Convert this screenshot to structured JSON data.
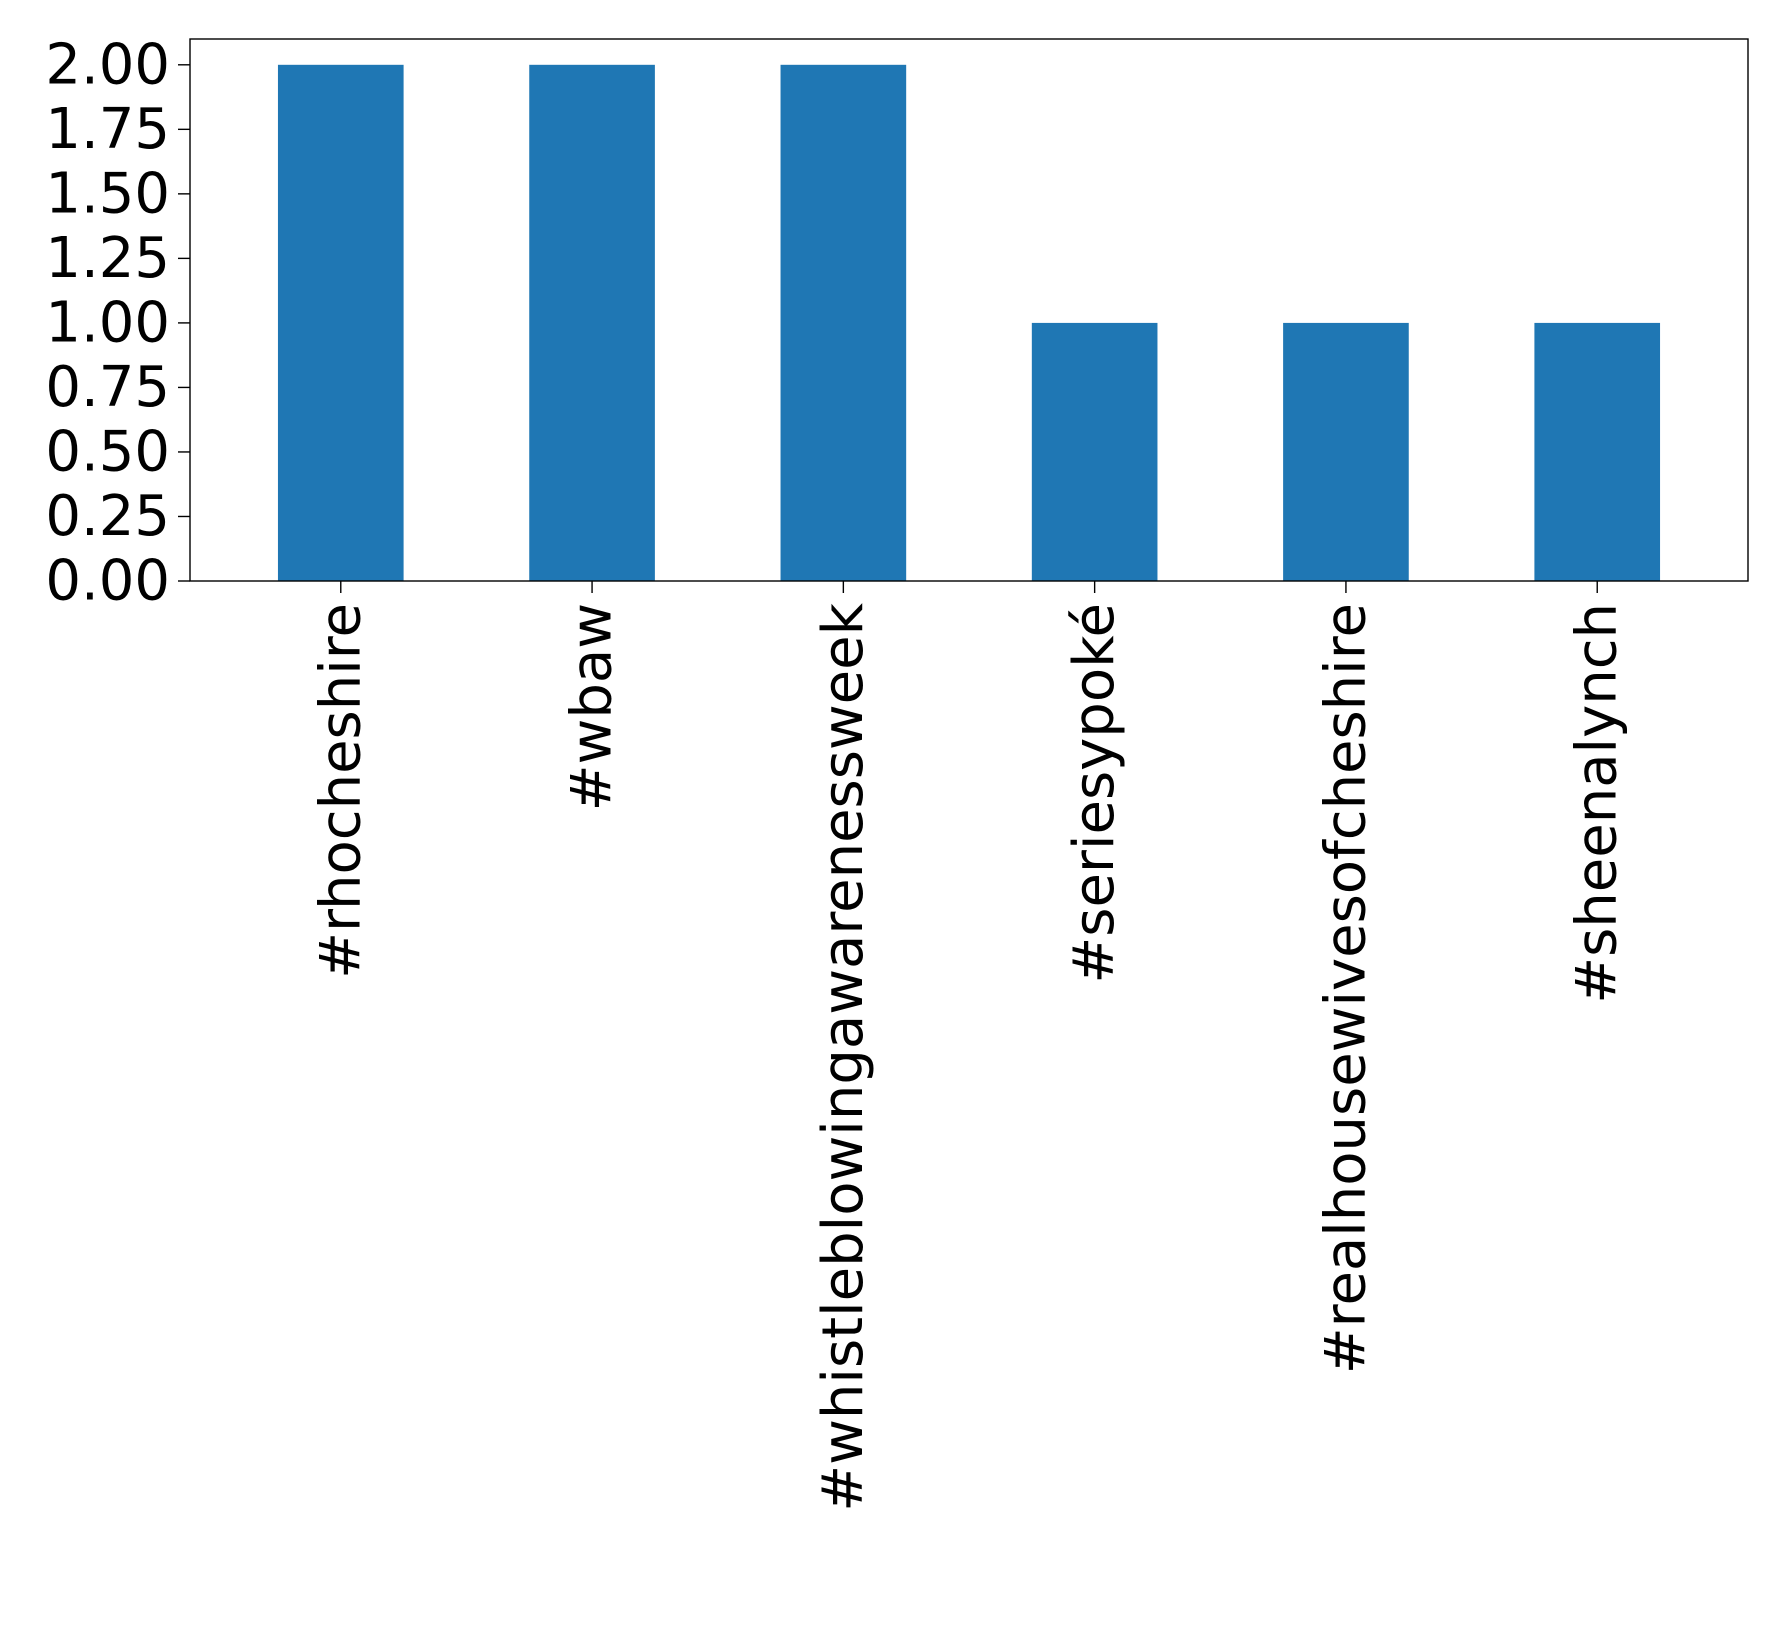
{
  "chart_data": {
    "type": "bar",
    "title": "",
    "xlabel": "",
    "ylabel": "",
    "categories": [
      "#rhocheshire",
      "#wbaw",
      "#whistleblowingawarenessweek",
      "#seriesypoké",
      "#realhousewivesofcheshire",
      "#sheenalynch"
    ],
    "values": [
      2,
      2,
      2,
      1,
      1,
      1
    ],
    "ylim": [
      0,
      2.1
    ],
    "yticks": [
      0.0,
      0.25,
      0.5,
      0.75,
      1.0,
      1.25,
      1.5,
      1.75,
      2.0
    ],
    "ytick_labels": [
      "0.00",
      "0.25",
      "0.50",
      "0.75",
      "1.00",
      "1.25",
      "1.50",
      "1.75",
      "2.00"
    ],
    "bar_color": "#1f77b4",
    "grid": false,
    "legend": false
  }
}
